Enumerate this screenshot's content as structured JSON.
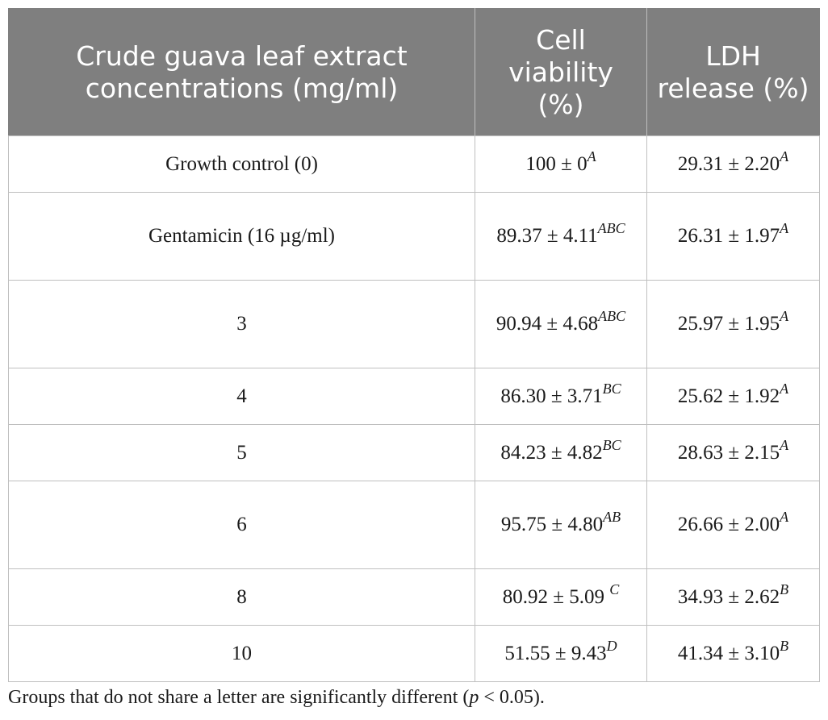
{
  "table": {
    "headers": [
      "Crude guava leaf extract concentrations (mg/ml)",
      "Cell viability (%)",
      "LDH release (%)"
    ],
    "rows": [
      {
        "concentration": "Growth control (0)",
        "cell_viability": "100 ± 0",
        "cell_viability_sig": "A",
        "ldh_release": "29.31 ± 2.20",
        "ldh_release_sig": "A"
      },
      {
        "concentration": "Gentamicin (16 µg/ml)",
        "cell_viability": "89.37 ± 4.11",
        "cell_viability_sig": "ABC",
        "ldh_release": "26.31 ± 1.97",
        "ldh_release_sig": "A"
      },
      {
        "concentration": "3",
        "cell_viability": "90.94 ± 4.68",
        "cell_viability_sig": "ABC",
        "ldh_release": "25.97 ± 1.95",
        "ldh_release_sig": "A"
      },
      {
        "concentration": "4",
        "cell_viability": "86.30 ± 3.71",
        "cell_viability_sig": "BC",
        "ldh_release": "25.62 ± 1.92",
        "ldh_release_sig": "A"
      },
      {
        "concentration": "5",
        "cell_viability": "84.23 ± 4.82",
        "cell_viability_sig": "BC",
        "ldh_release": "28.63 ± 2.15",
        "ldh_release_sig": "A"
      },
      {
        "concentration": "6",
        "cell_viability": "95.75 ± 4.80",
        "cell_viability_sig": "AB",
        "ldh_release": "26.66 ± 2.00",
        "ldh_release_sig": "A"
      },
      {
        "concentration": "8",
        "cell_viability": "80.92 ± 5.09",
        "cell_viability_sig": "C",
        "ldh_release": "34.93 ± 2.62",
        "ldh_release_sig": "B"
      },
      {
        "concentration": "10",
        "cell_viability": "51.55 ± 9.43",
        "cell_viability_sig": "D",
        "ldh_release": "41.34 ± 3.10",
        "ldh_release_sig": "B"
      }
    ]
  },
  "footnote": {
    "before": "Groups that do not share a letter are significantly different (",
    "p_symbol": "p",
    "after": " < 0.05)."
  }
}
